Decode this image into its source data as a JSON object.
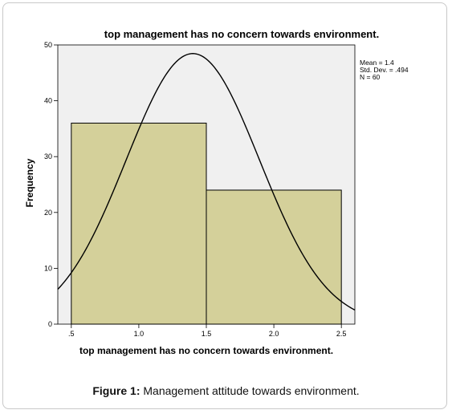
{
  "chart_data": {
    "type": "bar",
    "subtype": "histogram",
    "title": "top management has no concern towards environment.",
    "xlabel": "top management has no concern towards environment.",
    "ylabel": "Frequency",
    "xlim": [
      0.4,
      2.6
    ],
    "ylim": [
      0,
      50
    ],
    "x_ticks": [
      0.5,
      1.0,
      1.5,
      2.0,
      2.5
    ],
    "x_tick_labels": [
      ".5",
      "1.0",
      "1.5",
      "2.0",
      "2.5"
    ],
    "y_ticks": [
      0,
      10,
      20,
      30,
      40,
      50
    ],
    "y_tick_labels": [
      "0",
      "10",
      "20",
      "30",
      "40",
      "50"
    ],
    "bins": [
      {
        "from": 0.5,
        "to": 1.5,
        "count": 36
      },
      {
        "from": 1.5,
        "to": 2.5,
        "count": 24
      }
    ],
    "normal_curve": {
      "mean": 1.4,
      "sd": 0.494,
      "n": 60,
      "bin_width": 1.0
    },
    "stats_lines": [
      "Mean = 1.4",
      "Std. Dev. = .494",
      "N = 60"
    ],
    "grid": false,
    "colors": {
      "bar_fill": "#d4d09a",
      "plot_bg": "#f0f0f0",
      "curve": "#000000"
    }
  },
  "caption": {
    "label": "Figure 1:",
    "text": " Management attitude towards environment."
  }
}
